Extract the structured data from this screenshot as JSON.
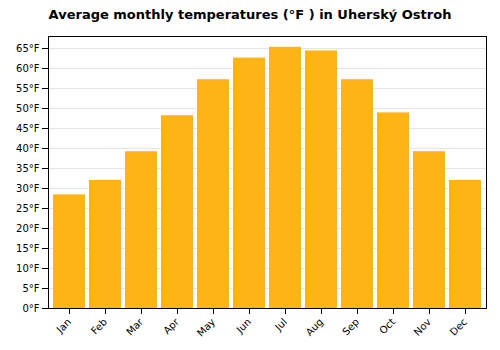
{
  "chart_data": {
    "type": "bar",
    "title": "Average monthly temperatures (°F ) in Uherský Ostroh",
    "categories": [
      "Jan",
      "Feb",
      "Mar",
      "Apr",
      "May",
      "Jun",
      "Jul",
      "Aug",
      "Sep",
      "Oct",
      "Nov",
      "Dec"
    ],
    "values": [
      28.4,
      32.0,
      39.2,
      48.2,
      57.2,
      62.6,
      65.3,
      64.4,
      57.2,
      48.9,
      39.2,
      32.0
    ],
    "color": "#FDB515",
    "ylim": [
      0,
      68
    ],
    "yticks": [
      {
        "value": 0,
        "label": "0°F"
      },
      {
        "value": 5,
        "label": "5°F"
      },
      {
        "value": 10,
        "label": "10°F"
      },
      {
        "value": 15,
        "label": "15°F"
      },
      {
        "value": 20,
        "label": "20°F"
      },
      {
        "value": 25,
        "label": "25°F"
      },
      {
        "value": 30,
        "label": "30°F"
      },
      {
        "value": 35,
        "label": "35°F"
      },
      {
        "value": 40,
        "label": "40°F"
      },
      {
        "value": 45,
        "label": "45°F"
      },
      {
        "value": 50,
        "label": "50°F"
      },
      {
        "value": 55,
        "label": "55°F"
      },
      {
        "value": 60,
        "label": "60°F"
      },
      {
        "value": 65,
        "label": "65°F"
      }
    ],
    "grid": true
  }
}
